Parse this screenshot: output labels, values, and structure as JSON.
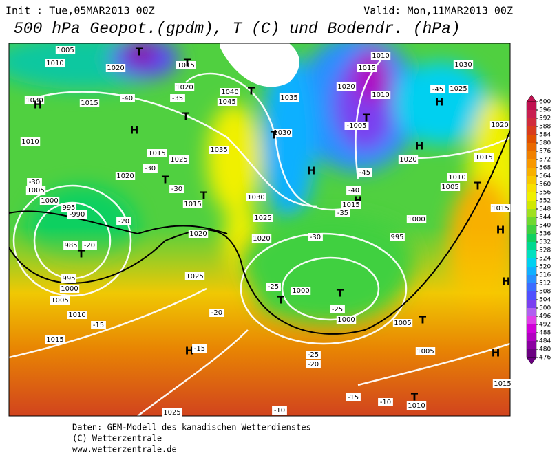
{
  "header": {
    "init": "Init : Tue,05MAR2013 00Z",
    "valid": "Valid: Mon,11MAR2013 00Z",
    "title": "500 hPa Geopot.(gpdm), T (C) und Bodendr. (hPa)"
  },
  "colorbar": {
    "levels": [
      600,
      596,
      592,
      588,
      584,
      580,
      576,
      572,
      568,
      564,
      560,
      556,
      552,
      548,
      544,
      540,
      536,
      532,
      528,
      524,
      520,
      516,
      512,
      508,
      504,
      500,
      496,
      492,
      488,
      484,
      480,
      476
    ],
    "colors": [
      "#c01050",
      "#c82050",
      "#d02c3c",
      "#d83c1c",
      "#e05000",
      "#e86800",
      "#f08000",
      "#f89800",
      "#f8b000",
      "#f8c800",
      "#f8e000",
      "#f0f000",
      "#d0e800",
      "#a0e020",
      "#70d830",
      "#40d040",
      "#10d060",
      "#00d890",
      "#00e0c0",
      "#00d0f0",
      "#10b0ff",
      "#2890ff",
      "#3c6cff",
      "#5050ff",
      "#7a40f0",
      "#b060f0",
      "#e040e8",
      "#d000d8",
      "#b000c0",
      "#8a00a0",
      "#6a0080"
    ]
  },
  "map_labels": [
    "1005",
    "1010",
    "1020",
    "1015",
    "T",
    "T",
    "1020",
    "-40",
    "-35",
    "1040",
    "T",
    "1045",
    "1035",
    "1030",
    "H",
    "1015",
    "H",
    "T",
    "1030",
    "T",
    "1010",
    "1015",
    "-30",
    "1025",
    "T",
    "-30",
    "1035",
    "H",
    "1005",
    "-30",
    "1020",
    "T",
    "1015",
    "1030",
    "1000",
    "995",
    "-990",
    "-20",
    "985",
    "-20",
    "T",
    "1025",
    "1020",
    "1020",
    "-30",
    "995",
    "1000",
    "1005",
    "1010",
    "1015",
    "1025",
    "-20",
    "-15",
    "H",
    "-15",
    "-25",
    "T",
    "1000",
    "T",
    "-25",
    "1000",
    "995",
    "1000",
    "1005",
    "T",
    "1005",
    "-25",
    "-20",
    "-15",
    "-10",
    "-10",
    "1025",
    "1010",
    "T",
    "H",
    "1015",
    "H",
    "H",
    "1015",
    "1010",
    "1005",
    "T",
    "1015",
    "1020",
    "H",
    "1020",
    "H",
    "-45",
    "1025",
    "1030",
    "1010",
    "1015",
    "1020",
    "1010",
    "-1005",
    "T",
    "H",
    "-40",
    "-45",
    "1015",
    "-35"
  ],
  "footer": [
    "Daten: GEM-Modell des kanadischen Wetterdienstes",
    "(C) Wetterzentrale",
    "www.wetterzentrale.de"
  ]
}
